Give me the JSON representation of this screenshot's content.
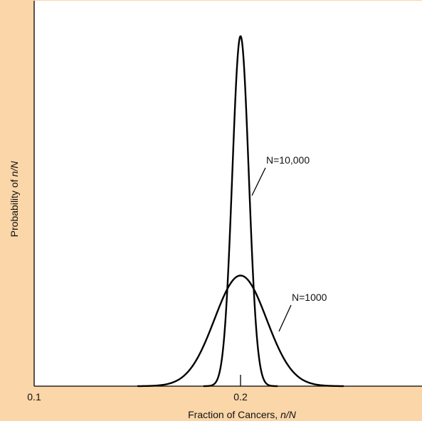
{
  "chart_data": {
    "type": "line",
    "title": "",
    "xlabel_prefix": "Fraction of Cancers, ",
    "xlabel_var": "n/N",
    "ylabel_prefix": "Probability of ",
    "ylabel_var": "n/N",
    "xlim": [
      0.1,
      0.3
    ],
    "ylim": [
      0,
      1.0
    ],
    "x_ticks": [
      {
        "value": 0.1,
        "label": "0.1"
      },
      {
        "value": 0.2,
        "label": "0.2"
      }
    ],
    "grid": false,
    "legend": "none",
    "series": [
      {
        "name": "N=10,000",
        "mean": 0.2,
        "sd": 0.004,
        "peak": 0.965,
        "x": [
          0.182,
          0.186,
          0.19,
          0.193,
          0.195,
          0.197,
          0.198,
          0.199,
          0.2,
          0.201,
          0.202,
          0.203,
          0.205,
          0.207,
          0.21,
          0.214,
          0.218
        ],
        "y": [
          0.0,
          0.004,
          0.042,
          0.165,
          0.32,
          0.6,
          0.77,
          0.905,
          0.965,
          0.905,
          0.77,
          0.6,
          0.32,
          0.165,
          0.042,
          0.004,
          0.0
        ]
      },
      {
        "name": "N=1000",
        "mean": 0.2,
        "sd": 0.0126,
        "peak": 0.305,
        "x": [
          0.15,
          0.16,
          0.17,
          0.18,
          0.19,
          0.2,
          0.21,
          0.22,
          0.23,
          0.24,
          0.25
        ],
        "y": [
          0.0,
          0.02,
          0.05,
          0.11,
          0.22,
          0.305,
          0.22,
          0.11,
          0.05,
          0.02,
          0.0
        ]
      }
    ],
    "annotations": [
      {
        "text": "N=10,000",
        "series": "N=10,000"
      },
      {
        "text": "N=1000",
        "series": "N=1000"
      }
    ],
    "colors": {
      "background": "#fbd6a8",
      "plot_area": "#ffffff",
      "line": "#000000"
    }
  }
}
